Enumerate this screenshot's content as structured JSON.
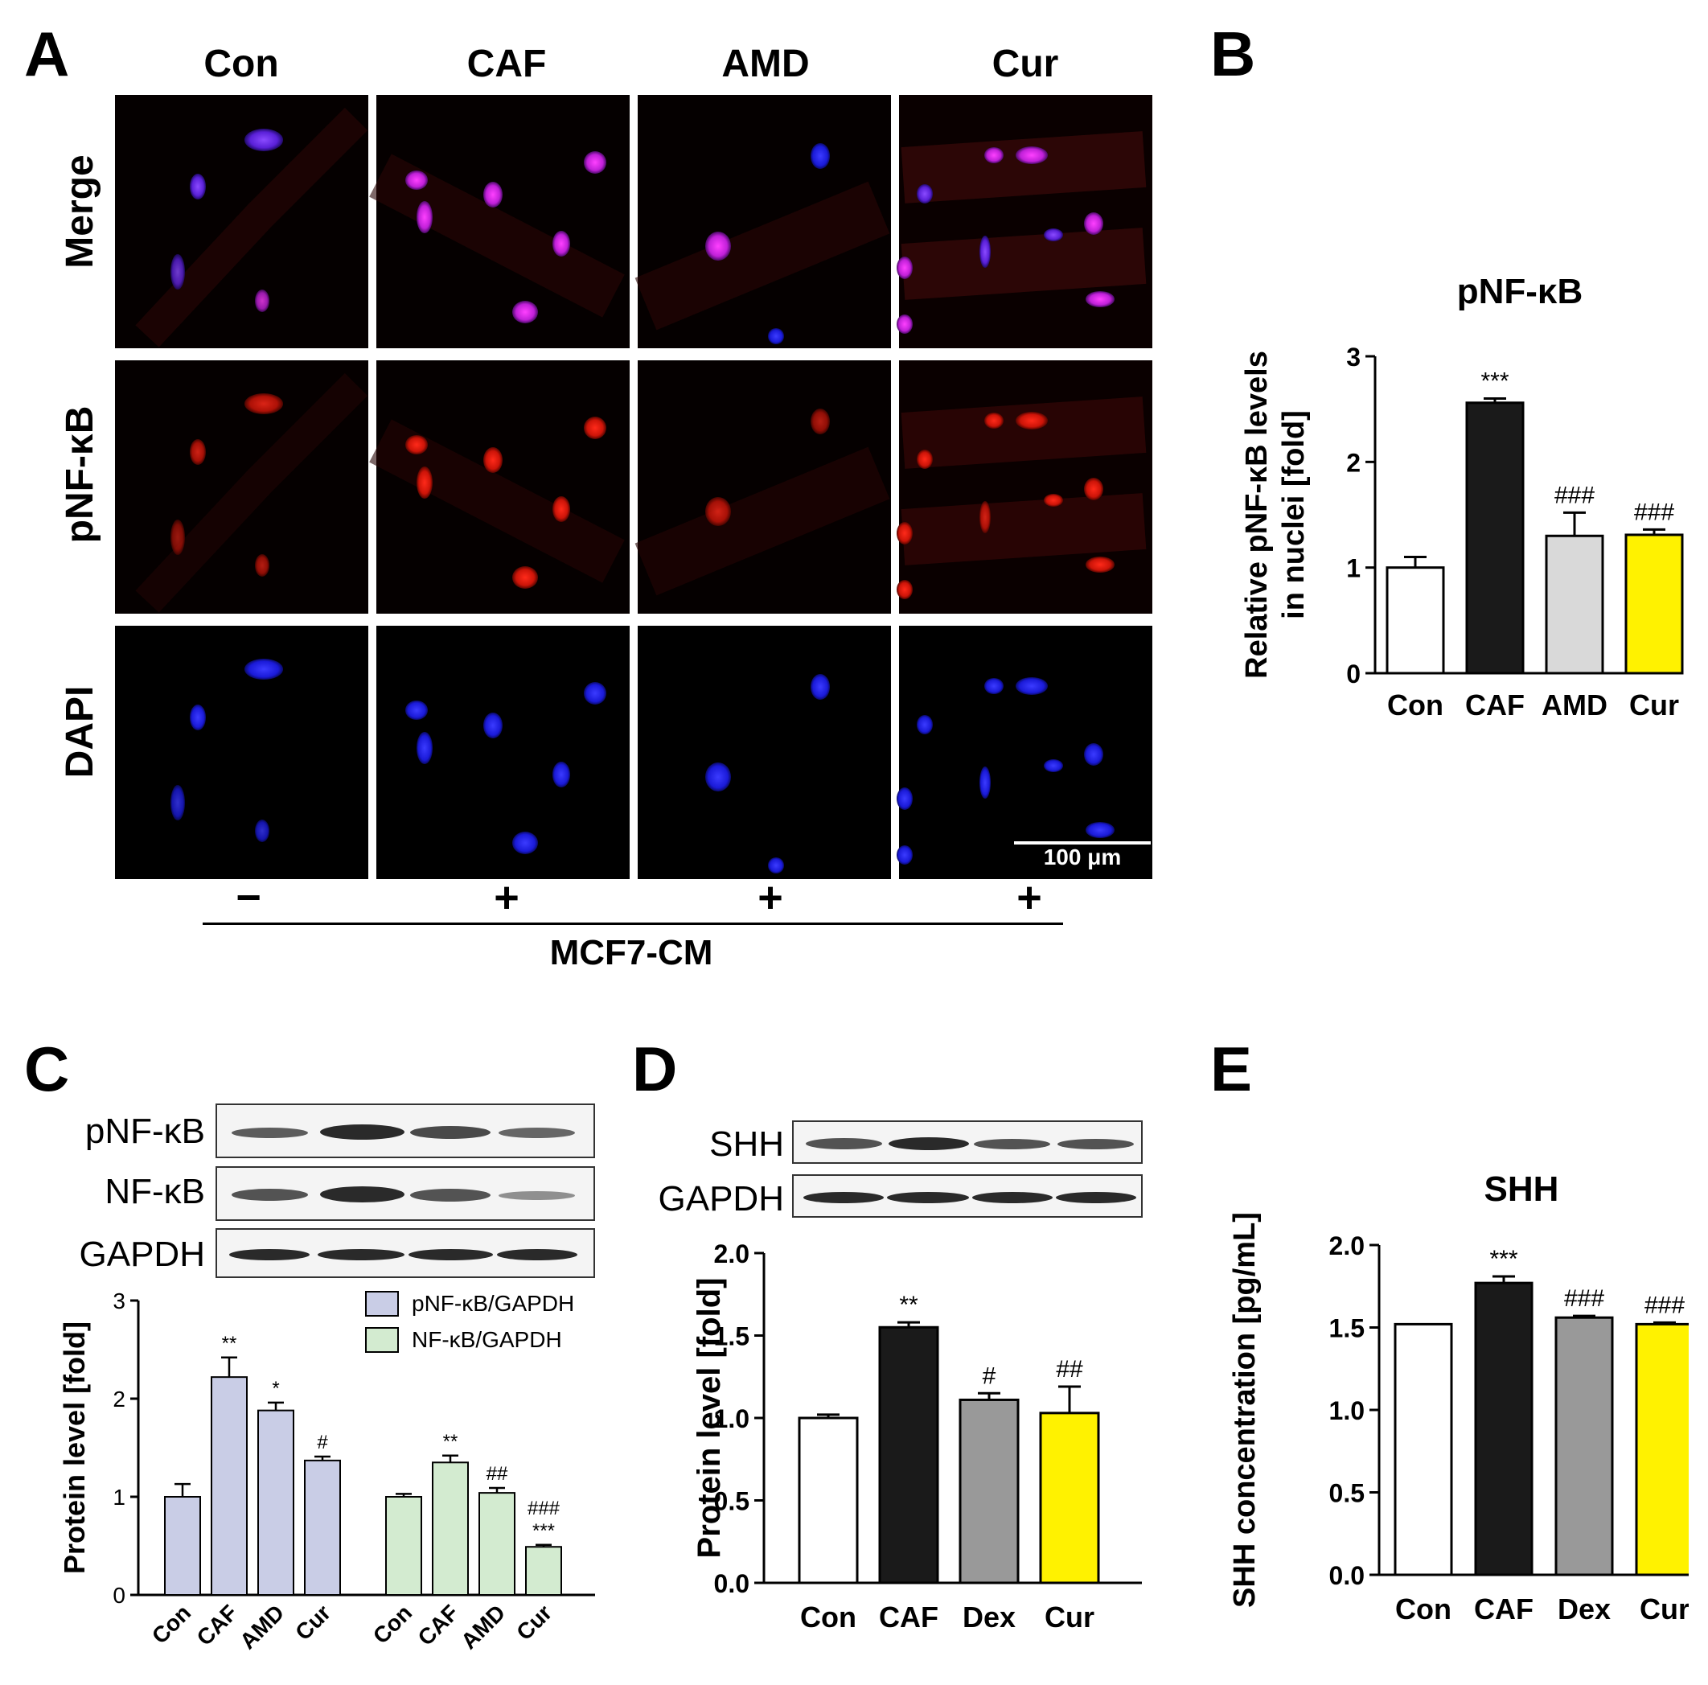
{
  "panels": {
    "a": "A",
    "b": "B",
    "c": "C",
    "d": "D",
    "e": "E"
  },
  "micrograph": {
    "columns": [
      "Con",
      "CAF",
      "AMD",
      "Cur"
    ],
    "rows": [
      "Merge",
      "pNF-κB",
      "DAPI"
    ],
    "scale_bar": "100 μm",
    "treatment_signs": [
      "−",
      "+",
      "+",
      "+"
    ],
    "treatment_label": "MCF7-CM"
  },
  "blots_c": [
    "pNF-κB",
    "NF-κB",
    "GAPDH"
  ],
  "blots_d": [
    "SHH",
    "GAPDH"
  ],
  "chart_data": [
    {
      "id": "B",
      "type": "bar",
      "title": "pNF-κB",
      "ylabel": "Relative pNF-κB levels in nuclei [fold]",
      "ylabel_lines": [
        "Relative pNF-κB levels",
        "in nuclei [fold]"
      ],
      "categories": [
        "Con",
        "CAF",
        "AMD",
        "Cur"
      ],
      "values": [
        1.0,
        2.56,
        1.3,
        1.31
      ],
      "errors": [
        0.1,
        0.04,
        0.22,
        0.05
      ],
      "annotations": [
        "",
        "***",
        "###",
        "###"
      ],
      "colors": [
        "#ffffff",
        "#1a1a1a",
        "#d9d9d9",
        "#fff200"
      ],
      "ylim": [
        0,
        3
      ],
      "yticks": [
        "0",
        "1",
        "2",
        "3"
      ]
    },
    {
      "id": "C",
      "type": "bar",
      "ylabel": "Protein level [fold]",
      "categories": [
        "Con",
        "CAF",
        "AMD",
        "Cur"
      ],
      "series": [
        {
          "name": "pNF-κB/GAPDH",
          "values": [
            1.0,
            2.22,
            1.88,
            1.37
          ],
          "errors": [
            0.13,
            0.2,
            0.08,
            0.04
          ],
          "annotations": [
            "",
            "**",
            "*",
            "#"
          ],
          "color": "#c9cde6"
        },
        {
          "name": "NF-κB/GAPDH",
          "values": [
            1.0,
            1.35,
            1.04,
            0.49
          ],
          "errors": [
            0.03,
            0.07,
            0.05,
            0.02
          ],
          "annotations": [
            "",
            "**",
            "##",
            "###\n***"
          ],
          "color": "#d3ebd0"
        }
      ],
      "ylim": [
        0,
        3
      ],
      "yticks": [
        "0",
        "1",
        "2",
        "3"
      ]
    },
    {
      "id": "D",
      "type": "bar",
      "ylabel": "Protein level [fold]",
      "categories": [
        "Con",
        "CAF",
        "Dex",
        "Cur"
      ],
      "values": [
        1.0,
        1.55,
        1.11,
        1.03
      ],
      "errors": [
        0.02,
        0.03,
        0.04,
        0.16
      ],
      "annotations": [
        "",
        "**",
        "#",
        "##"
      ],
      "colors": [
        "#ffffff",
        "#1a1a1a",
        "#999999",
        "#fff200"
      ],
      "ylim": [
        0,
        2.0
      ],
      "yticks": [
        "0.0",
        "0.5",
        "1.0",
        "1.5",
        "2.0"
      ]
    },
    {
      "id": "E",
      "type": "bar",
      "title": "SHH",
      "ylabel": "SHH concentration [pg/mL]",
      "categories": [
        "Con",
        "CAF",
        "Dex",
        "Cur"
      ],
      "values": [
        1.52,
        1.77,
        1.56,
        1.52
      ],
      "errors": [
        0.0,
        0.04,
        0.01,
        0.01
      ],
      "annotations": [
        "",
        "***",
        "###",
        "###"
      ],
      "colors": [
        "#ffffff",
        "#1a1a1a",
        "#999999",
        "#fff200"
      ],
      "ylim": [
        0,
        2.0
      ],
      "yticks": [
        "0.0",
        "0.5",
        "1.0",
        "1.5",
        "2.0"
      ]
    }
  ]
}
